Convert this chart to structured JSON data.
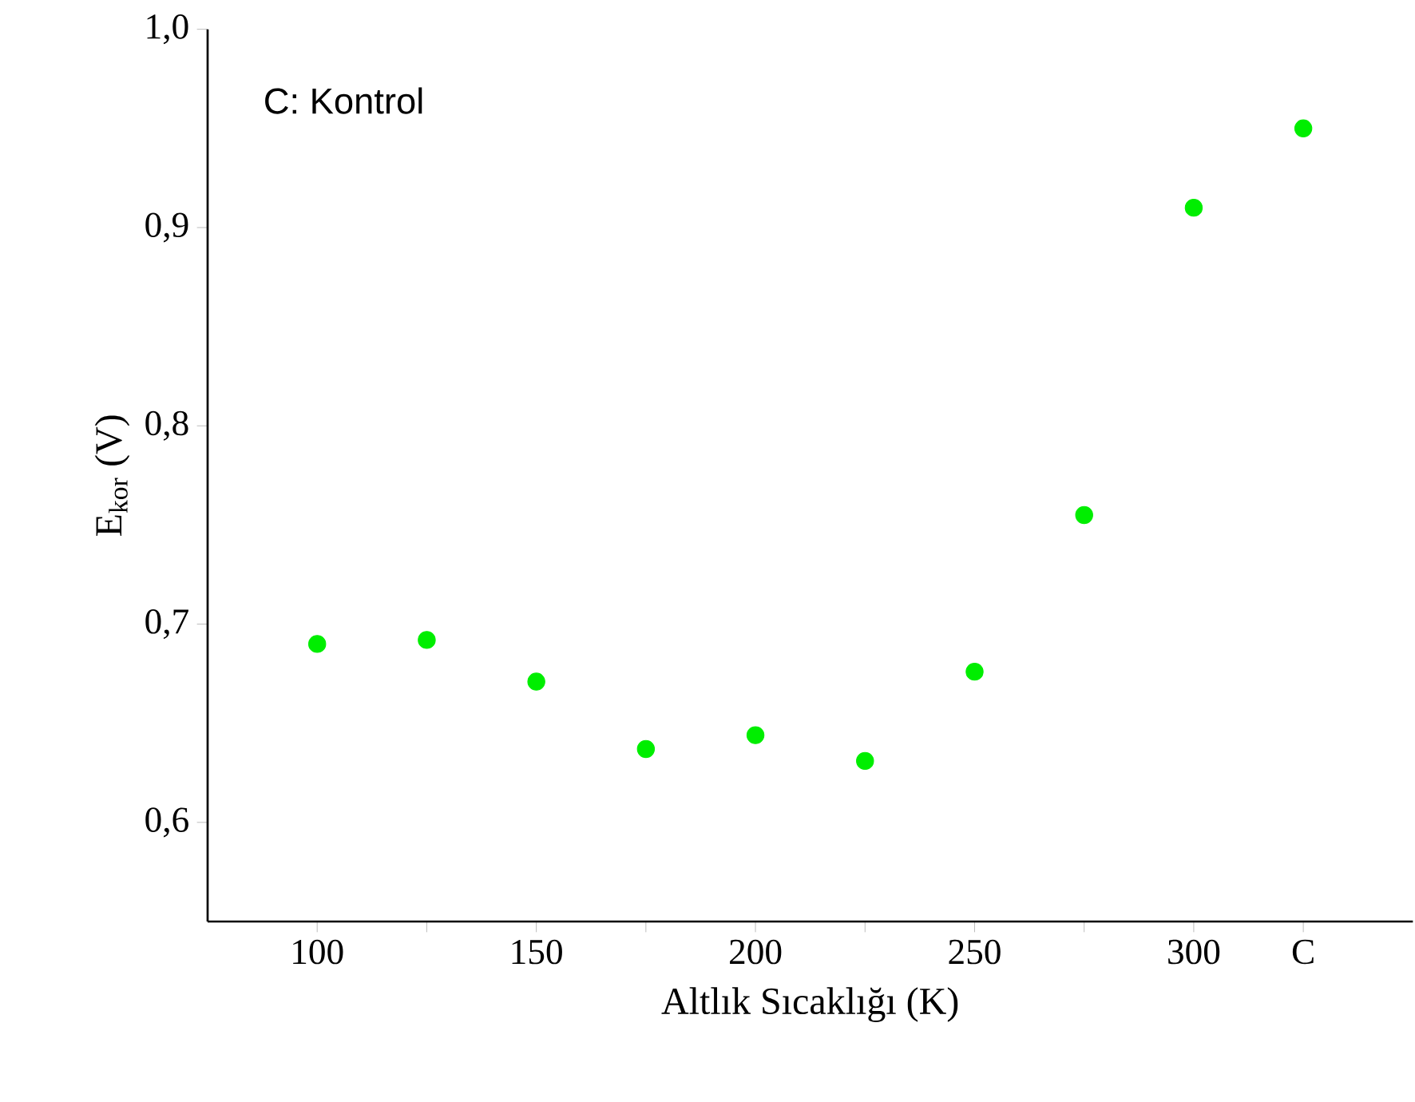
{
  "chart_data": {
    "type": "scatter",
    "xlabel": "Altlık Sıcaklığı (K)",
    "ylabel": "E$_{kor}$ (V)",
    "annotations": [
      "C: Kontrol"
    ],
    "x": [
      100,
      125,
      150,
      175,
      200,
      225,
      250,
      275,
      300,
      325
    ],
    "values": [
      0.69,
      0.692,
      0.671,
      0.637,
      0.644,
      0.631,
      0.676,
      0.755,
      0.91,
      0.95
    ],
    "color": "#00ee00",
    "marker": "circle",
    "xlim": [
      75,
      350
    ],
    "ylim": [
      0.55,
      1.0
    ],
    "xticks": [
      100,
      {
        "value": 125,
        "label": null
      },
      150,
      {
        "value": 175,
        "label": null
      },
      200,
      {
        "value": 225,
        "label": null
      },
      250,
      {
        "value": 275,
        "label": null
      },
      300,
      {
        "value": 325,
        "label": "C"
      }
    ],
    "yticks": [
      {
        "value": 0.6,
        "label": "0,6"
      },
      {
        "value": 0.7,
        "label": "0,7"
      },
      {
        "value": 0.8,
        "label": "0,8"
      },
      {
        "value": 0.9,
        "label": "0,9"
      },
      {
        "value": 1.0,
        "label": "1,0"
      }
    ]
  }
}
